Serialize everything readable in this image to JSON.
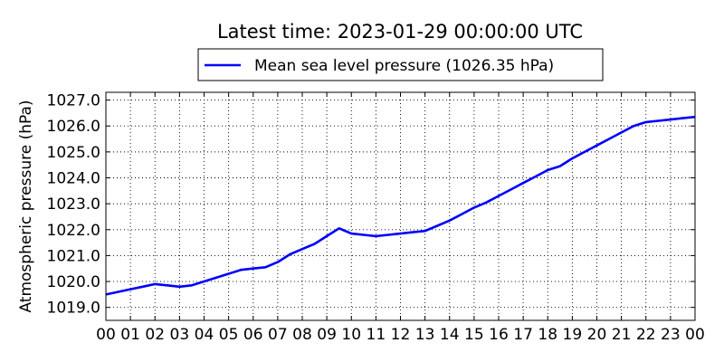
{
  "chart_data": {
    "type": "line",
    "title": "Latest time: 2023-01-29 00:00:00 UTC",
    "xlabel": "",
    "ylabel": "Atmospheric pressure (hPa)",
    "x_tick_labels": [
      "00",
      "01",
      "02",
      "03",
      "04",
      "05",
      "06",
      "07",
      "08",
      "09",
      "10",
      "11",
      "12",
      "13",
      "14",
      "15",
      "16",
      "17",
      "18",
      "19",
      "20",
      "21",
      "22",
      "23",
      "00"
    ],
    "y_tick_labels": [
      "1019.0",
      "1020.0",
      "1021.0",
      "1022.0",
      "1023.0",
      "1024.0",
      "1025.0",
      "1026.0",
      "1027.0"
    ],
    "xlim": [
      0,
      24
    ],
    "ylim": [
      1018.5,
      1027.3
    ],
    "grid": true,
    "legend_position": "top-center",
    "series": [
      {
        "name": "Mean sea level pressure (1026.35 hPa)",
        "color": "#0000ff",
        "x": [
          0,
          0.5,
          1,
          1.5,
          2,
          2.5,
          3,
          3.5,
          4,
          4.5,
          5,
          5.5,
          6,
          6.5,
          7,
          7.5,
          8,
          8.5,
          9,
          9.5,
          10,
          10.5,
          11,
          11.5,
          12,
          12.5,
          13,
          13.5,
          14,
          14.5,
          15,
          15.5,
          16,
          16.5,
          17,
          17.5,
          18,
          18.5,
          19,
          19.5,
          20,
          20.5,
          21,
          21.5,
          22,
          22.5,
          23,
          23.5,
          24
        ],
        "values": [
          1019.5,
          1019.6,
          1019.7,
          1019.8,
          1019.9,
          1019.85,
          1019.8,
          1019.85,
          1020.0,
          1020.15,
          1020.3,
          1020.45,
          1020.5,
          1020.55,
          1020.75,
          1021.05,
          1021.25,
          1021.45,
          1021.75,
          1022.05,
          1021.85,
          1021.8,
          1021.75,
          1021.8,
          1021.85,
          1021.9,
          1021.95,
          1022.15,
          1022.35,
          1022.6,
          1022.85,
          1023.05,
          1023.3,
          1023.55,
          1023.8,
          1024.05,
          1024.3,
          1024.45,
          1024.75,
          1025.0,
          1025.25,
          1025.5,
          1025.75,
          1026.0,
          1026.15,
          1026.2,
          1026.25,
          1026.3,
          1026.35
        ]
      }
    ]
  }
}
